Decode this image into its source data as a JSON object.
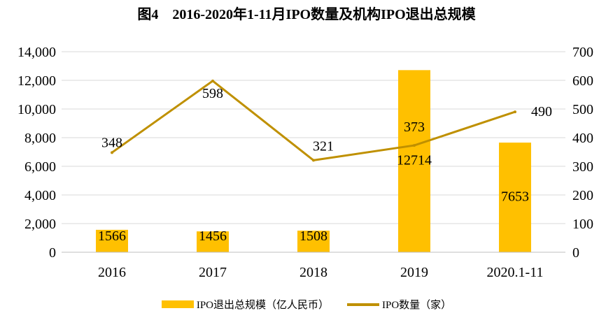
{
  "chart_data": {
    "type": "bar",
    "title": "图4    2016-2020年1-11月IPO数量及机构IPO退出总规模",
    "categories": [
      "2016",
      "2017",
      "2018",
      "2019",
      "2020.1-11"
    ],
    "series": [
      {
        "name": "IPO退出总规模（亿人民币）",
        "type": "bar",
        "axis": "left",
        "values": [
          1566,
          1456,
          1508,
          12714,
          7653
        ]
      },
      {
        "name": "IPO数量（家）",
        "type": "line",
        "axis": "right",
        "values": [
          348,
          598,
          321,
          373,
          490
        ]
      }
    ],
    "y_left": {
      "min": 0,
      "max": 14000,
      "ticks": [
        "0",
        "2,000",
        "4,000",
        "6,000",
        "8,000",
        "10,000",
        "12,000",
        "14,000"
      ]
    },
    "y_right": {
      "min": 0,
      "max": 700,
      "ticks": [
        "0",
        "100",
        "200",
        "300",
        "400",
        "500",
        "600",
        "700"
      ]
    },
    "grid": true,
    "legend_position": "bottom"
  },
  "colors": {
    "bar": "#FFC000",
    "line": "#BF9000",
    "grid": "#D9D9D9"
  }
}
